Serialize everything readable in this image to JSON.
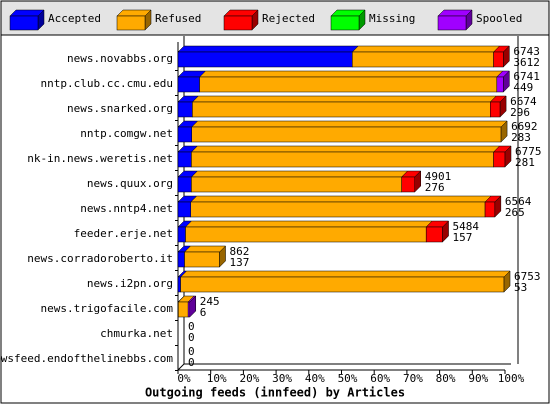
{
  "chart_data": {
    "type": "stacked-bar-3d",
    "title": "Outgoing feeds (innfeed) by Articles",
    "categories": [
      "news.novabbs.org",
      "nntp.club.cc.cmu.edu",
      "news.snarked.org",
      "nntp.comgw.net",
      "nk-in.news.weretis.net",
      "news.quux.org",
      "news.nntp4.net",
      "feeder.erje.net",
      "news.corradoroberto.it",
      "news.i2pn.org",
      "news.trigofacile.com",
      "chmurka.net",
      "newsfeed.endofthelinebbs.com"
    ],
    "series": [
      {
        "name": "Accepted",
        "color": "#0000ff",
        "values": [
          53.3,
          6.6,
          4.4,
          4.2,
          4.1,
          4.1,
          3.9,
          2.3,
          2.0,
          0.8,
          0.1,
          0,
          0
        ]
      },
      {
        "name": "Refused",
        "color": "#ffaa00",
        "values": [
          43.2,
          90.9,
          91.1,
          94.6,
          92.4,
          64.3,
          90.0,
          73.6,
          10.7,
          98.9,
          3.0,
          0,
          0
        ]
      },
      {
        "name": "Rejected",
        "color": "#ff0000",
        "values": [
          3.0,
          0,
          3.0,
          0,
          3.5,
          4.0,
          3.0,
          5.0,
          0,
          0,
          0,
          0,
          0
        ]
      },
      {
        "name": "Missing",
        "color": "#00ff00",
        "values": [
          0,
          0,
          0,
          0,
          0,
          0,
          0,
          0,
          0,
          0,
          0,
          0,
          0
        ]
      },
      {
        "name": "Spooled",
        "color": "#a000ff",
        "values": [
          0,
          2.0,
          0,
          0,
          0,
          0,
          0,
          0,
          0,
          0,
          0.5,
          0,
          0
        ]
      }
    ],
    "offered_articles": [
      6743,
      6741,
      6674,
      6692,
      6775,
      4901,
      6564,
      5484,
      862,
      6753,
      245,
      0,
      0
    ],
    "accepted_articles": [
      3612,
      449,
      296,
      283,
      281,
      276,
      265,
      157,
      137,
      53,
      6,
      0,
      0
    ],
    "xlim": [
      0,
      100
    ],
    "xticks": [
      {
        "value": 0,
        "label": "0%"
      },
      {
        "value": 10,
        "label": "10%"
      },
      {
        "value": 20,
        "label": "20%"
      },
      {
        "value": 30,
        "label": "30%"
      },
      {
        "value": 40,
        "label": "40%"
      },
      {
        "value": 50,
        "label": "50%"
      },
      {
        "value": 60,
        "label": "60%"
      },
      {
        "value": 70,
        "label": "70%"
      },
      {
        "value": 80,
        "label": "80%"
      },
      {
        "value": 90,
        "label": "90%"
      },
      {
        "value": 100,
        "label": "100%"
      }
    ],
    "grid": false,
    "legend": "top"
  }
}
